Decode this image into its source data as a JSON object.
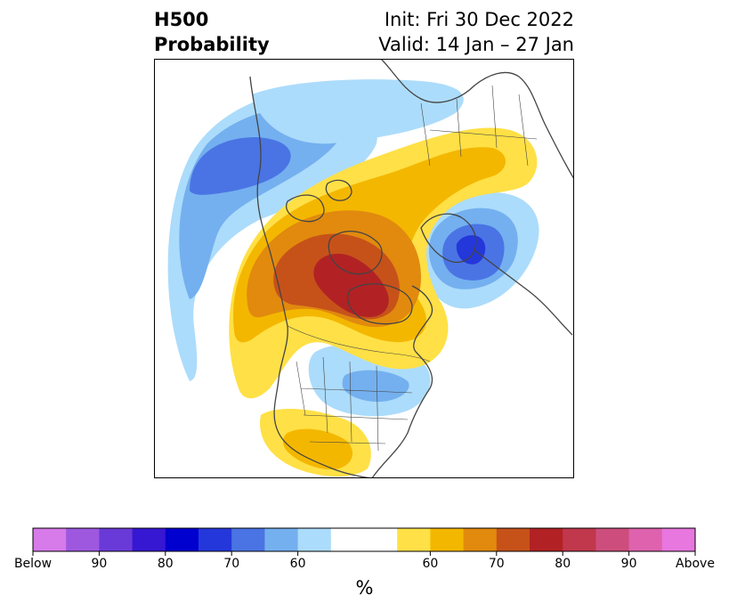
{
  "title": {
    "left_line1": "H500",
    "left_line2": "Probability",
    "right_line1": "Init: Fri 30 Dec 2022",
    "right_line2": "Valid: 14 Jan – 27 Jan"
  },
  "colorbar": {
    "unit": "%",
    "colors": [
      "#d77aea",
      "#9e58e0",
      "#6a3ad8",
      "#3617d2",
      "#0000cf",
      "#2437da",
      "#4a74e4",
      "#74b0ef",
      "#acdcfb",
      "#ffffff",
      "#ffffff",
      "#ffe046",
      "#f4b700",
      "#e18a0e",
      "#c6521a",
      "#b22224",
      "#c1374b",
      "#cd4e7c",
      "#de62ad",
      "#e877df"
    ],
    "ticks": [
      {
        "label": "Below",
        "index": 0
      },
      {
        "label": "90",
        "index": 2
      },
      {
        "label": "80",
        "index": 4
      },
      {
        "label": "70",
        "index": 6
      },
      {
        "label": "60",
        "index": 8
      },
      {
        "label": "60",
        "index": 12
      },
      {
        "label": "70",
        "index": 14
      },
      {
        "label": "80",
        "index": 16
      },
      {
        "label": "90",
        "index": 18
      },
      {
        "label": "Above",
        "index": 20
      }
    ]
  },
  "map": {
    "colors": {
      "below_50": "#acdcfb",
      "below_55": "#74b0ef",
      "below_60": "#4a74e4",
      "below_65": "#2437da",
      "above_50": "#ffe046",
      "above_55": "#f4b700",
      "above_60": "#e18a0e",
      "above_65": "#c6521a",
      "above_70": "#b22224",
      "border": "#444444"
    }
  }
}
